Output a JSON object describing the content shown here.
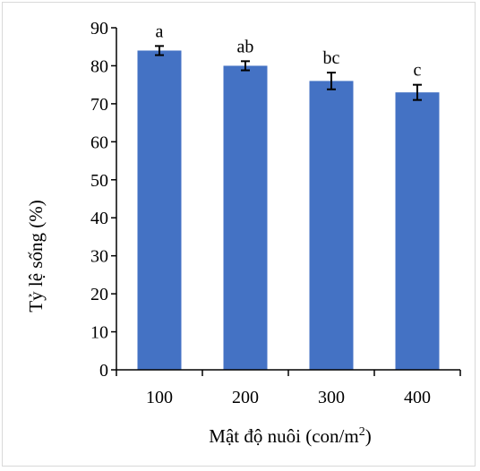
{
  "chart_data": {
    "type": "bar",
    "categories": [
      "100",
      "200",
      "300",
      "400"
    ],
    "values": [
      84,
      80,
      76,
      73
    ],
    "errors": [
      1.2,
      1.2,
      2.2,
      2.0
    ],
    "significance_labels": [
      "a",
      "ab",
      "bc",
      "c"
    ],
    "xlabel": "Mật độ nuôi (con/m",
    "xlabel_superscript": "2",
    "xlabel_suffix": ")",
    "ylabel": "Tỷ lệ sống (%)",
    "ylim": [
      0,
      90
    ],
    "yticks": [
      0,
      10,
      20,
      30,
      40,
      50,
      60,
      70,
      80,
      90
    ],
    "grid": false,
    "bar_color": "#4472c4",
    "error_bar_color": "#000000"
  }
}
